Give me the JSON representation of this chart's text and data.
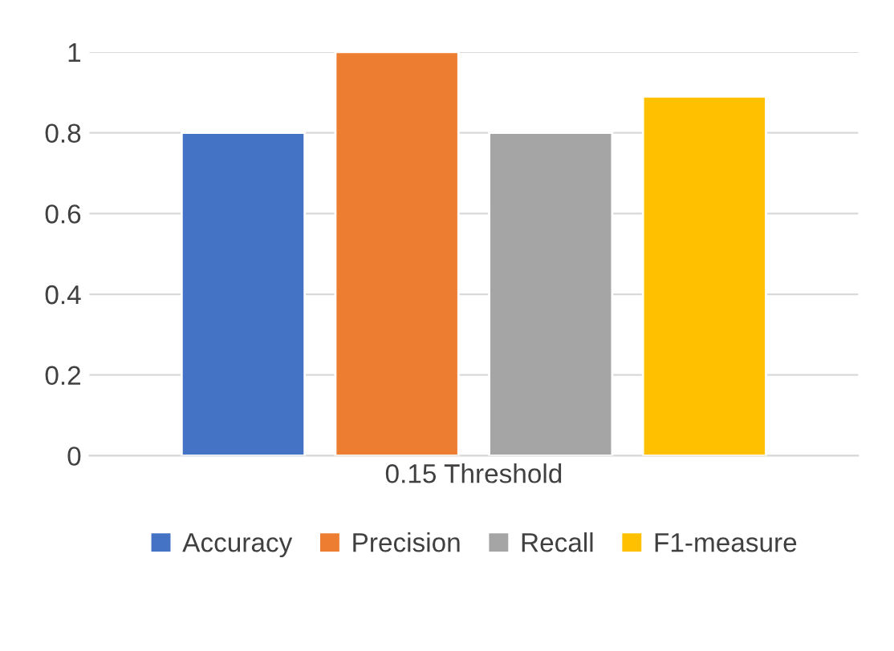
{
  "chart_data": {
    "type": "bar",
    "categories": [
      "0.15 Threshold"
    ],
    "series": [
      {
        "name": "Accuracy",
        "color": "#4472c4",
        "values": [
          0.8
        ]
      },
      {
        "name": "Precision",
        "color": "#ed7d31",
        "values": [
          1.0
        ]
      },
      {
        "name": "Recall",
        "color": "#a5a5a5",
        "values": [
          0.8
        ]
      },
      {
        "name": "F1-measure",
        "color": "#ffc000",
        "values": [
          0.89
        ]
      }
    ],
    "ylim": [
      0,
      1
    ],
    "yticks": [
      0,
      0.2,
      0.4,
      0.6,
      0.8,
      1
    ],
    "grid": "y",
    "legend": "bottom"
  }
}
